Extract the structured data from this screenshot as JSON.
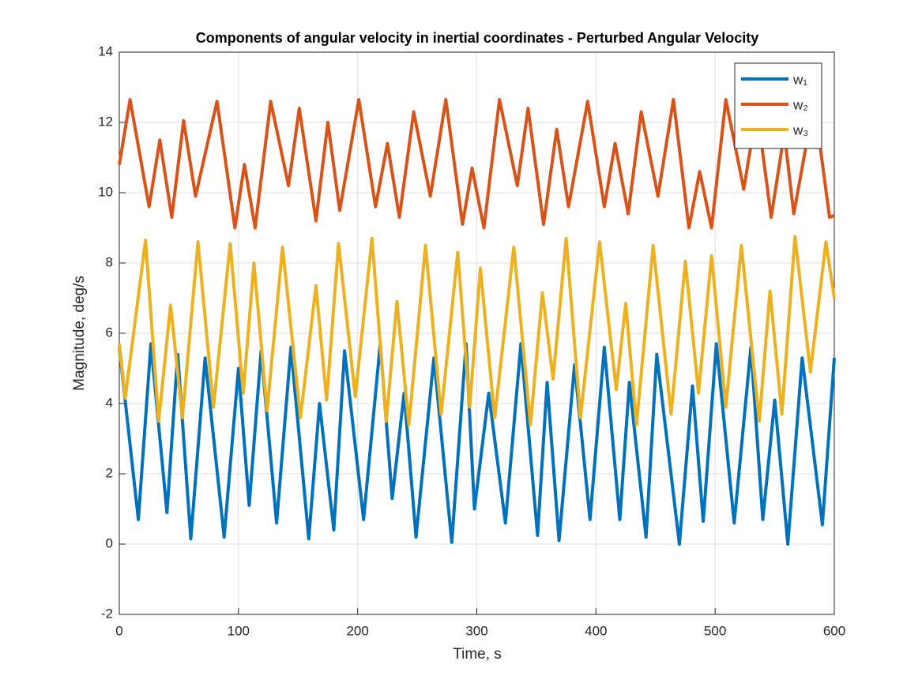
{
  "chart_data": {
    "type": "line",
    "title": "Components of angular velocity in inertial coordinates - Perturbed Angular Velocity",
    "x_label": "Time, s",
    "y_label": "Magnitude, deg/s",
    "xlim": [
      0,
      600
    ],
    "xticks": [
      0,
      100,
      200,
      300,
      400,
      500,
      600
    ],
    "ylim": [
      -2,
      14
    ],
    "yticks": [
      -2,
      0,
      2,
      4,
      6,
      8,
      10,
      12,
      14
    ],
    "grid": true,
    "legend": "upper right",
    "series": [
      {
        "name": "w₁",
        "color": "#0072bd",
        "x": [
          0,
          16,
          26.5,
          40,
          49,
          60,
          72,
          88,
          100,
          109,
          119,
          132,
          144,
          159,
          168,
          180,
          189,
          205,
          219,
          229,
          239,
          249,
          264,
          279,
          291,
          298,
          310,
          324,
          337,
          351,
          359,
          369,
          382,
          395,
          407,
          420,
          428,
          442,
          451,
          470,
          481,
          490,
          501,
          516,
          530,
          540,
          550,
          561,
          573,
          590,
          600
        ],
        "values": [
          5.6,
          0.7,
          5.7,
          0.9,
          5.4,
          0.15,
          5.3,
          0.2,
          5.0,
          1.1,
          5.5,
          0.6,
          5.6,
          0.15,
          4.0,
          0.4,
          5.5,
          0.7,
          5.7,
          1.3,
          4.3,
          0.2,
          5.3,
          0.05,
          5.7,
          1.0,
          4.3,
          0.6,
          5.7,
          0.25,
          4.6,
          0.1,
          5.1,
          0.7,
          5.6,
          0.7,
          4.6,
          0.2,
          5.4,
          0.0,
          4.5,
          0.65,
          5.7,
          0.6,
          5.6,
          0.7,
          4.1,
          0.0,
          5.3,
          0.55,
          5.3
        ]
      },
      {
        "name": "w₂",
        "color": "#d95319",
        "x": [
          0,
          9,
          25,
          34,
          44,
          54,
          64,
          82,
          97,
          105,
          114,
          127,
          142,
          151,
          165,
          175,
          185,
          201,
          215,
          225,
          235,
          247,
          261,
          274,
          288,
          296,
          306,
          319,
          334,
          343,
          356,
          367,
          377,
          393,
          407,
          416,
          427,
          438,
          452,
          465,
          478,
          487,
          497,
          509,
          524,
          535,
          547,
          558,
          566,
          583,
          596,
          600
        ],
        "values": [
          10.8,
          12.65,
          9.6,
          11.5,
          9.3,
          12.05,
          9.9,
          12.6,
          9.0,
          10.8,
          9.0,
          12.6,
          10.2,
          12.4,
          9.2,
          12.0,
          9.5,
          12.65,
          9.6,
          11.4,
          9.3,
          12.3,
          9.9,
          12.65,
          9.1,
          10.7,
          9.0,
          12.65,
          10.2,
          12.4,
          9.1,
          11.8,
          9.6,
          12.6,
          9.6,
          11.4,
          9.4,
          12.3,
          9.9,
          12.65,
          9.0,
          10.6,
          9.0,
          12.65,
          10.1,
          12.4,
          9.3,
          11.7,
          9.4,
          12.6,
          9.3,
          9.35
        ]
      },
      {
        "name": "w₃",
        "color": "#edb120",
        "x": [
          0,
          5,
          22,
          33,
          43,
          53,
          66,
          79,
          93,
          104,
          113,
          124,
          137,
          152,
          165,
          174,
          184,
          198,
          212,
          224,
          233,
          243,
          257,
          270,
          284,
          294,
          303,
          315,
          331,
          345,
          355,
          364,
          375,
          387,
          403,
          417,
          425,
          434,
          448,
          463,
          475,
          486,
          497,
          509,
          522,
          537,
          546,
          556,
          567,
          580,
          593,
          600
        ],
        "values": [
          5.7,
          4.15,
          8.65,
          3.5,
          6.8,
          3.6,
          8.6,
          3.9,
          8.55,
          4.3,
          8.0,
          3.8,
          8.45,
          3.6,
          7.35,
          4.1,
          8.55,
          4.2,
          8.7,
          3.5,
          6.9,
          3.4,
          8.5,
          3.7,
          8.3,
          3.9,
          7.85,
          3.6,
          8.45,
          3.4,
          7.15,
          4.7,
          8.7,
          3.6,
          8.6,
          4.4,
          6.85,
          3.4,
          8.5,
          3.7,
          8.05,
          4.3,
          8.2,
          3.9,
          8.5,
          3.5,
          7.2,
          3.7,
          8.75,
          4.9,
          8.6,
          7.0
        ]
      }
    ]
  }
}
